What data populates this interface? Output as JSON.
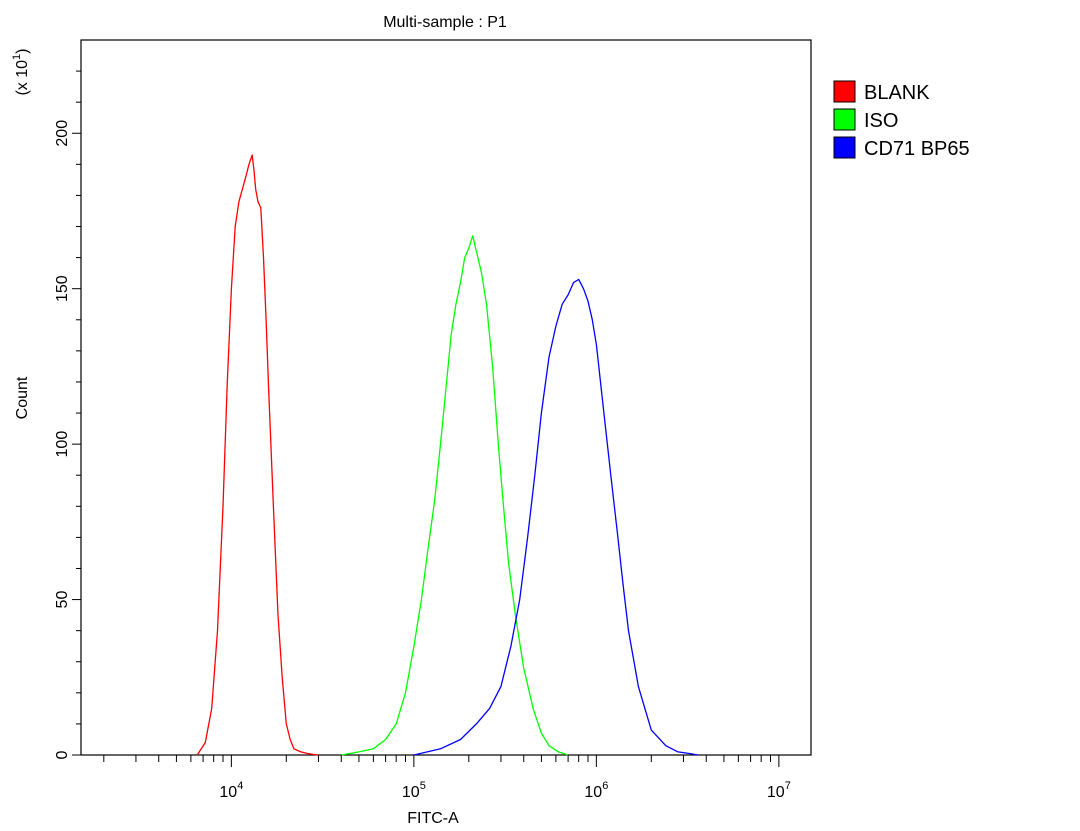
{
  "chart_data": {
    "type": "line",
    "title": "Multi-sample : P1",
    "xlabel": "FITC-A",
    "ylabel": "Count",
    "y_multiplier": "(x 10",
    "y_multiplier_exp": "1",
    "y_multiplier_close": ")",
    "x_scale": "log",
    "xlim": [
      1500,
      15000000
    ],
    "ylim": [
      0,
      230
    ],
    "x_ticks": [
      {
        "value": 10000,
        "base": "10",
        "exp": "4"
      },
      {
        "value": 100000,
        "base": "10",
        "exp": "5"
      },
      {
        "value": 1000000,
        "base": "10",
        "exp": "6"
      },
      {
        "value": 10000000,
        "base": "10",
        "exp": "7"
      }
    ],
    "y_ticks": [
      {
        "value": 0,
        "label": "0"
      },
      {
        "value": 50,
        "label": "50"
      },
      {
        "value": 100,
        "label": "100"
      },
      {
        "value": 150,
        "label": "150"
      },
      {
        "value": 200,
        "label": "200"
      }
    ],
    "grid": false,
    "legend_position": "right",
    "series": [
      {
        "name": "BLANK",
        "color": "#ff0000",
        "x": [
          6500,
          7200,
          7800,
          8400,
          9000,
          9500,
          10000,
          10500,
          11000,
          11500,
          12000,
          12500,
          13000,
          13300,
          13600,
          14000,
          14500,
          15000,
          15500,
          16000,
          17000,
          18000,
          19000,
          20000,
          21000,
          22000,
          24000,
          26000,
          28000,
          30000
        ],
        "y": [
          0,
          4,
          15,
          40,
          80,
          120,
          150,
          170,
          178,
          182,
          186,
          190,
          193,
          188,
          182,
          178,
          176,
          160,
          140,
          118,
          80,
          45,
          25,
          10,
          5,
          2,
          1,
          0.5,
          0.2,
          0
        ]
      },
      {
        "name": "ISO",
        "color": "#00ff00",
        "x": [
          40000,
          50000,
          60000,
          70000,
          80000,
          90000,
          100000,
          110000,
          120000,
          130000,
          140000,
          150000,
          160000,
          170000,
          180000,
          190000,
          200000,
          210000,
          220000,
          235000,
          250000,
          270000,
          290000,
          310000,
          330000,
          360000,
          400000,
          450000,
          500000,
          550000,
          620000,
          700000
        ],
        "y": [
          0,
          1,
          2,
          5,
          10,
          20,
          35,
          50,
          67,
          82,
          100,
          118,
          135,
          145,
          152,
          160,
          163,
          167,
          162,
          155,
          145,
          125,
          100,
          80,
          62,
          45,
          28,
          15,
          7,
          3,
          1,
          0
        ]
      },
      {
        "name": "CD71 BP65",
        "color": "#0000ff",
        "x": [
          100000,
          140000,
          180000,
          220000,
          260000,
          300000,
          340000,
          380000,
          420000,
          460000,
          500000,
          550000,
          600000,
          650000,
          700000,
          750000,
          800000,
          850000,
          900000,
          950000,
          1000000,
          1100000,
          1200000,
          1300000,
          1400000,
          1500000,
          1700000,
          2000000,
          2400000,
          2800000,
          3200000,
          3600000
        ],
        "y": [
          0,
          2,
          5,
          10,
          15,
          22,
          35,
          50,
          70,
          90,
          110,
          128,
          138,
          145,
          148,
          152,
          153,
          150,
          146,
          140,
          132,
          110,
          90,
          72,
          55,
          40,
          22,
          8,
          3,
          1,
          0.5,
          0
        ]
      }
    ]
  }
}
